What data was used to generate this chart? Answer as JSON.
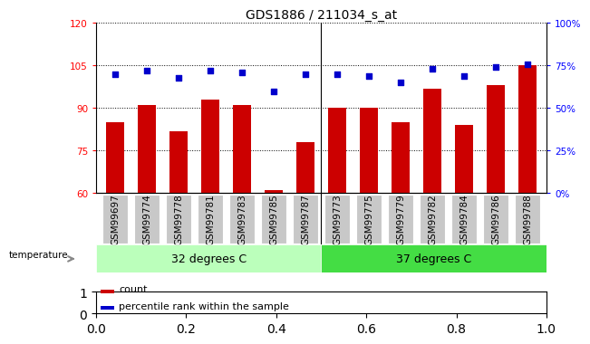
{
  "title": "GDS1886 / 211034_s_at",
  "samples": [
    "GSM99697",
    "GSM99774",
    "GSM99778",
    "GSM99781",
    "GSM99783",
    "GSM99785",
    "GSM99787",
    "GSM99773",
    "GSM99775",
    "GSM99779",
    "GSM99782",
    "GSM99784",
    "GSM99786",
    "GSM99788"
  ],
  "count_values": [
    85,
    91,
    82,
    93,
    91,
    61,
    78,
    90,
    90,
    85,
    97,
    84,
    98,
    105
  ],
  "percentile_values": [
    70,
    72,
    68,
    72,
    71,
    60,
    70,
    70,
    69,
    65,
    73,
    69,
    74,
    76
  ],
  "group1_label": "32 degrees C",
  "group2_label": "37 degrees C",
  "group1_count": 7,
  "group2_count": 7,
  "ylim_left": [
    60,
    120
  ],
  "ylim_right": [
    0,
    100
  ],
  "yticks_left": [
    60,
    75,
    90,
    105,
    120
  ],
  "yticks_right": [
    0,
    25,
    50,
    75,
    100
  ],
  "bar_color": "#cc0000",
  "dot_color": "#0000cc",
  "xtick_bg": "#c8c8c8",
  "group1_bg": "#bbffbb",
  "group2_bg": "#44dd44",
  "temp_label": "temperature",
  "legend_count": "count",
  "legend_pct": "percentile rank within the sample",
  "title_fontsize": 10,
  "tick_fontsize": 7.5
}
